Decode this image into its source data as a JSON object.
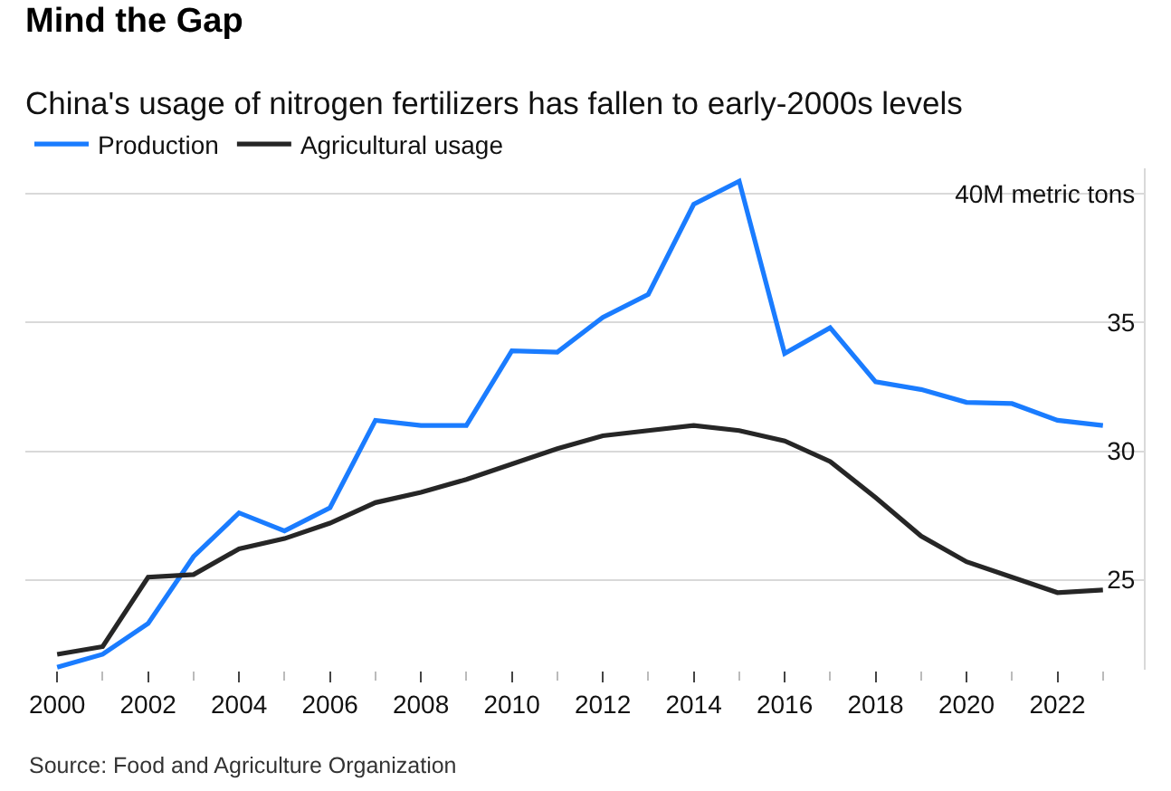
{
  "chart_data": {
    "type": "line",
    "title": "Mind the Gap",
    "subtitle": "China's usage of nitrogen fertilizers has fallen to early-2000s levels",
    "x": [
      2000,
      2001,
      2002,
      2003,
      2004,
      2005,
      2006,
      2007,
      2008,
      2009,
      2010,
      2011,
      2012,
      2013,
      2014,
      2015,
      2016,
      2017,
      2018,
      2019,
      2020,
      2021,
      2022,
      2023
    ],
    "series": [
      {
        "name": "Production",
        "color": "#1a7cff",
        "values": [
          21.6,
          22.1,
          23.3,
          25.9,
          27.6,
          26.9,
          27.8,
          31.2,
          31.0,
          31.0,
          33.9,
          33.85,
          35.2,
          36.1,
          39.6,
          40.5,
          33.8,
          34.8,
          32.7,
          32.4,
          31.9,
          31.85,
          31.2,
          31.0
        ]
      },
      {
        "name": "Agricultural usage",
        "color": "#262626",
        "values": [
          22.1,
          22.4,
          25.1,
          25.2,
          26.2,
          26.6,
          27.2,
          28.0,
          28.4,
          28.9,
          29.5,
          30.1,
          30.6,
          30.8,
          31.0,
          30.8,
          30.4,
          29.6,
          28.2,
          26.7,
          25.7,
          25.1,
          24.5,
          24.6
        ]
      }
    ],
    "xlim": [
      1999.3,
      2023.9
    ],
    "xticks": [
      2000,
      {
        "value": 2001,
        "label": null
      },
      2002,
      {
        "value": 2003,
        "label": null
      },
      2004,
      {
        "value": 2005,
        "label": null
      },
      2006,
      {
        "value": 2007,
        "label": null
      },
      2008,
      {
        "value": 2009,
        "label": null
      },
      2010,
      {
        "value": 2011,
        "label": null
      },
      2012,
      {
        "value": 2013,
        "label": null
      },
      2014,
      {
        "value": 2015,
        "label": null
      },
      2016,
      {
        "value": 2017,
        "label": null
      },
      2018,
      {
        "value": 2019,
        "label": null
      },
      2020,
      {
        "value": 2021,
        "label": null
      },
      2022,
      {
        "value": 2023,
        "label": null
      }
    ],
    "ylim": [
      21.5,
      41
    ],
    "yticks": [
      25,
      30,
      35,
      {
        "value": 40,
        "label": "40M metric tons"
      }
    ],
    "grid": "y",
    "legend": "top left",
    "line_style": "solid",
    "annotations": [
      "Source: Food and Agriculture Organization"
    ]
  }
}
